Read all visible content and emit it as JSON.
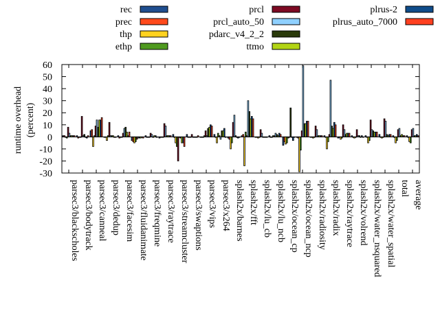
{
  "chart_data": {
    "type": "bar",
    "ylabel_lines": [
      "runtime overhead",
      "(percent)"
    ],
    "ylim": [
      -30,
      60
    ],
    "yticks": [
      -30,
      -20,
      -10,
      0,
      10,
      20,
      30,
      40,
      50,
      60
    ],
    "grid": false,
    "legend_placement": "top",
    "categories": [
      "parsec3/blackscholes",
      "parsec3/bodytrack",
      "parsec3/canneal",
      "parsec3/dedup",
      "parsec3/facesim",
      "parsec3/fluidanimate",
      "parsec3/freqmine",
      "parsec3/raytrace",
      "parsec3/streamcluster",
      "parsec3/swaptions",
      "parsec3/vips",
      "parsec3/x264",
      "splash2x/barnes",
      "splash2x/fft",
      "splash2x/lu_cb",
      "splash2x/lu_ncb",
      "splash2x/ocean_cp",
      "splash2x/ocean_ncp",
      "splash2x/radiosity",
      "splash2x/radix",
      "splash2x/raytrace",
      "splash2x/volrend",
      "splash2x/water_nsquared",
      "splash2x/water_spatial",
      "total",
      "average"
    ],
    "series": [
      {
        "name": "rec",
        "color": "#1f4e8f",
        "values": [
          1,
          1,
          5,
          0,
          1,
          -3,
          1,
          -1,
          2,
          2,
          0,
          2,
          -1,
          1,
          0,
          1,
          -7,
          0,
          0,
          1,
          -1,
          1,
          1,
          2,
          1,
          1
        ]
      },
      {
        "name": "prec",
        "color": "#ff4a1c",
        "values": [
          1,
          -1,
          6,
          0,
          -1,
          -4,
          0,
          0,
          0,
          0,
          0,
          0,
          -2,
          2,
          0,
          0,
          -4,
          -1,
          0,
          0,
          0,
          0,
          0,
          0,
          0,
          0
        ]
      },
      {
        "name": "thp",
        "color": "#ffd21f",
        "values": [
          0,
          0,
          -8,
          -3,
          0,
          -5,
          0,
          0,
          -5,
          0,
          0,
          -5,
          -10,
          -24,
          -1,
          0,
          -6,
          -29,
          -1,
          -10,
          -2,
          -1,
          -5,
          -1,
          -5,
          -4
        ]
      },
      {
        "name": "ethp",
        "color": "#4f9a1f",
        "values": [
          -1,
          0,
          1,
          1,
          0,
          -4,
          0,
          0,
          -8,
          0,
          1,
          3,
          -5,
          4,
          0,
          1,
          -5,
          -11,
          0,
          -4,
          -1,
          0,
          -3,
          0,
          -3,
          -5
        ]
      },
      {
        "name": "prcl",
        "color": "#7d0a23",
        "values": [
          8,
          17,
          9,
          12,
          3,
          -2,
          3,
          11,
          -20,
          2,
          5,
          1,
          12,
          1,
          6,
          1,
          -1,
          5,
          9,
          2,
          10,
          6,
          14,
          15,
          6,
          6
        ]
      },
      {
        "name": "prcl_auto_50",
        "color": "#8fd0ff",
        "values": [
          3,
          1,
          14,
          1,
          7,
          -1,
          2,
          9,
          0,
          0,
          1,
          -2,
          18,
          30,
          3,
          3,
          0,
          59,
          6,
          47,
          6,
          1,
          6,
          13,
          7,
          7
        ]
      },
      {
        "name": "pdarc_v4_2_2",
        "color": "#2a3a0a",
        "values": [
          1,
          2,
          8,
          1,
          8,
          -1,
          0,
          1,
          -1,
          0,
          7,
          5,
          1,
          21,
          0,
          2,
          24,
          11,
          1,
          9,
          2,
          1,
          5,
          2,
          1,
          1
        ]
      },
      {
        "name": "ttmo",
        "color": "#b2d414",
        "values": [
          1,
          0,
          14,
          1,
          4,
          -1,
          1,
          1,
          -5,
          0,
          8,
          5,
          0,
          15,
          0,
          1,
          0,
          11,
          1,
          7,
          3,
          0,
          4,
          1,
          2,
          1
        ]
      },
      {
        "name": "plrus-2",
        "color": "#0f4c8a",
        "values": [
          1,
          -1,
          14,
          0,
          1,
          0,
          1,
          1,
          -5,
          0,
          10,
          7,
          -1,
          17,
          0,
          3,
          -3,
          13,
          1,
          12,
          3,
          1,
          4,
          2,
          1,
          2
        ]
      },
      {
        "name": "plrus_auto_7000",
        "color": "#ff4020",
        "values": [
          1,
          1,
          16,
          0,
          4,
          -1,
          0,
          1,
          -8,
          1,
          9,
          0,
          0,
          15,
          0,
          2,
          0,
          13,
          1,
          10,
          3,
          0,
          4,
          2,
          1,
          1
        ]
      }
    ]
  }
}
